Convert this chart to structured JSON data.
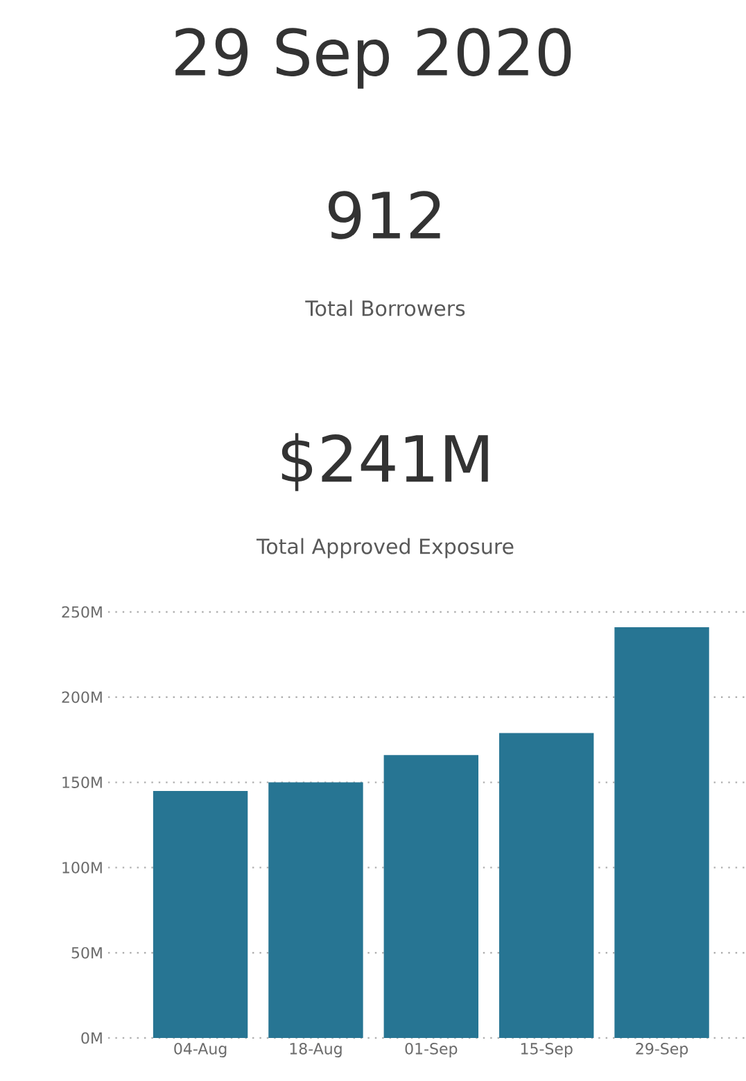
{
  "chart_data": {
    "type": "bar",
    "title": "29 Sep 2020",
    "annotations": [
      "912",
      "Total Borrowers",
      "$241M",
      "Total Approved Exposure"
    ],
    "categories": [
      "04-Aug",
      "18-Aug",
      "01-Sep",
      "15-Sep",
      "29-Sep"
    ],
    "values": [
      145,
      150,
      166,
      179,
      241
    ],
    "color": "#277593",
    "ylim": [
      0,
      250
    ],
    "yticks": [
      {
        "value": 0,
        "label": "0M"
      },
      {
        "value": 50,
        "label": "50M"
      },
      {
        "value": 100,
        "label": "100M"
      },
      {
        "value": 150,
        "label": "150M"
      },
      {
        "value": 200,
        "label": "200M"
      },
      {
        "value": 250,
        "label": "250M"
      }
    ],
    "grid": "y"
  }
}
